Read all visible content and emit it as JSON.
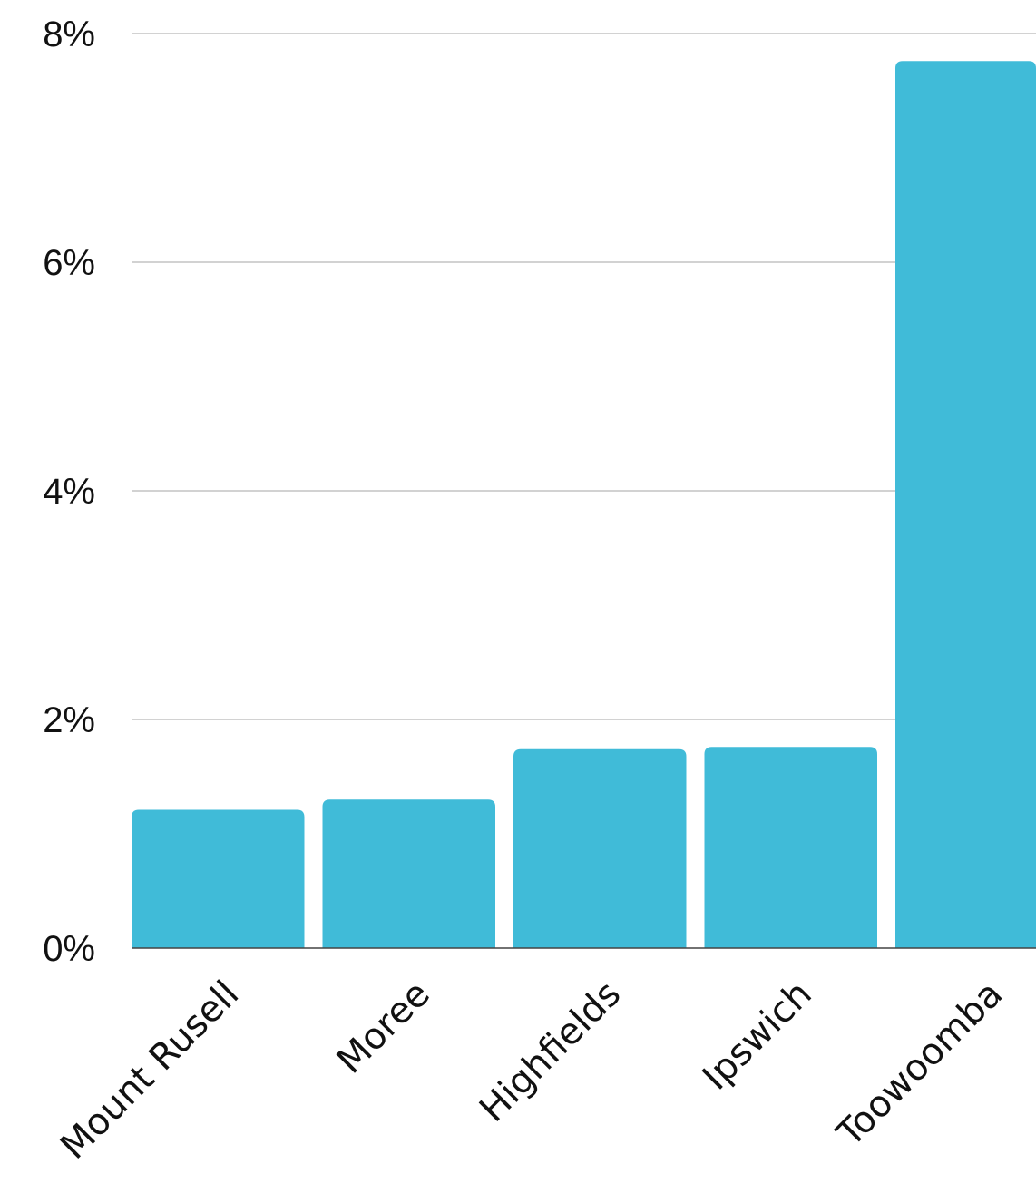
{
  "chart_data": {
    "type": "bar",
    "title": "",
    "xlabel": "",
    "ylabel": "",
    "categories": [
      "Mount Rusell",
      "Moree",
      "Highfields",
      "Ipswich",
      "Toowoomba"
    ],
    "values": [
      1.21,
      1.3,
      1.74,
      1.76,
      7.76
    ],
    "ylim": [
      0,
      8
    ],
    "y_ticks": [
      0,
      2,
      4,
      6,
      8
    ],
    "y_tick_labels": [
      "0%",
      "2%",
      "4%",
      "6%",
      "8%"
    ],
    "grid": true,
    "legend": "none",
    "bar_color": "#40BBD8"
  }
}
